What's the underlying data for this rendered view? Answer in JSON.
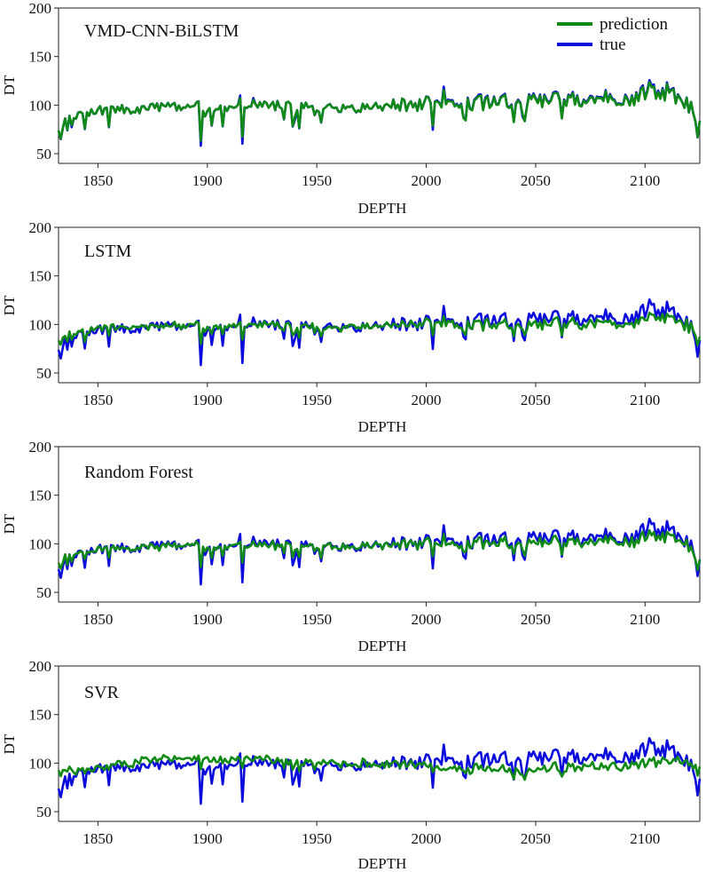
{
  "chart_data": [
    {
      "type": "line",
      "title": "VMD-CNN-BiLSTM",
      "xlabel": "DEPTH",
      "ylabel": "DT",
      "xlim": [
        1832,
        2125
      ],
      "ylim": [
        40,
        200
      ],
      "xticks": [
        1850,
        1900,
        1950,
        2000,
        2050,
        2100
      ],
      "yticks": [
        50,
        100,
        150,
        200
      ],
      "legend": "top-right",
      "legend_entries": [
        "prediction",
        "true"
      ],
      "fidelity": 0.97,
      "series": [
        {
          "name": "true",
          "color": "#0a0adc",
          "x": [
            1832,
            1840,
            1848,
            1856,
            1864,
            1872,
            1880,
            1888,
            1896,
            1904,
            1912,
            1920,
            1928,
            1936,
            1944,
            1952,
            1960,
            1968,
            1976,
            1984,
            1992,
            2000,
            2008,
            2016,
            2024,
            2032,
            2040,
            2048,
            2056,
            2064,
            2072,
            2080,
            2088,
            2096,
            2104,
            2112,
            2120,
            2125
          ],
          "y": [
            78,
            88,
            93,
            97,
            95,
            97,
            98,
            99,
            99,
            97,
            98,
            100,
            99,
            100,
            99,
            98,
            98,
            97,
            99,
            99,
            100,
            101,
            102,
            101,
            103,
            104,
            104,
            105,
            106,
            106,
            106,
            106,
            108,
            111,
            118,
            112,
            100,
            80
          ]
        },
        {
          "name": "prediction",
          "color": "#0f8a14",
          "x": [
            1832,
            1840,
            1848,
            1856,
            1864,
            1872,
            1880,
            1888,
            1896,
            1904,
            1912,
            1920,
            1928,
            1936,
            1944,
            1952,
            1960,
            1968,
            1976,
            1984,
            1992,
            2000,
            2008,
            2016,
            2024,
            2032,
            2040,
            2048,
            2056,
            2064,
            2072,
            2080,
            2088,
            2096,
            2104,
            2112,
            2120,
            2125
          ],
          "y": [
            78,
            88,
            93,
            97,
            95,
            97,
            98,
            99,
            99,
            97,
            98,
            100,
            99,
            100,
            99,
            98,
            98,
            97,
            99,
            99,
            100,
            101,
            101,
            100,
            102,
            103,
            103,
            104,
            105,
            105,
            105,
            105,
            107,
            110,
            116,
            111,
            100,
            80
          ]
        }
      ]
    },
    {
      "type": "line",
      "title": "LSTM",
      "xlabel": "DEPTH",
      "ylabel": "DT",
      "xlim": [
        1832,
        2125
      ],
      "ylim": [
        40,
        200
      ],
      "xticks": [
        1850,
        1900,
        1950,
        2000,
        2050,
        2100
      ],
      "yticks": [
        50,
        100,
        150,
        200
      ],
      "fidelity": 0.55,
      "series": [
        {
          "name": "true",
          "color": "#0a0adc",
          "x": [
            1832,
            1840,
            1848,
            1856,
            1864,
            1872,
            1880,
            1888,
            1896,
            1904,
            1912,
            1920,
            1928,
            1936,
            1944,
            1952,
            1960,
            1968,
            1976,
            1984,
            1992,
            2000,
            2008,
            2016,
            2024,
            2032,
            2040,
            2048,
            2056,
            2064,
            2072,
            2080,
            2088,
            2096,
            2104,
            2112,
            2120,
            2125
          ],
          "y": [
            78,
            88,
            93,
            97,
            95,
            97,
            98,
            99,
            99,
            97,
            98,
            100,
            99,
            100,
            99,
            98,
            98,
            97,
            99,
            99,
            100,
            101,
            102,
            101,
            103,
            104,
            104,
            105,
            106,
            106,
            106,
            106,
            108,
            111,
            118,
            112,
            100,
            80
          ]
        },
        {
          "name": "prediction",
          "color": "#0f8a14",
          "x": [
            1832,
            1840,
            1848,
            1856,
            1864,
            1872,
            1880,
            1888,
            1896,
            1904,
            1912,
            1920,
            1928,
            1936,
            1944,
            1952,
            1960,
            1968,
            1976,
            1984,
            1992,
            2000,
            2008,
            2016,
            2024,
            2032,
            2040,
            2048,
            2056,
            2064,
            2072,
            2080,
            2088,
            2096,
            2104,
            2112,
            2120,
            2125
          ],
          "y": [
            85,
            90,
            94,
            97,
            97,
            98,
            98,
            99,
            99,
            98,
            99,
            100,
            99,
            99,
            99,
            98,
            98,
            98,
            98,
            99,
            99,
            100,
            100,
            99,
            100,
            100,
            100,
            100,
            101,
            101,
            101,
            101,
            102,
            104,
            108,
            106,
            98,
            84
          ]
        }
      ]
    },
    {
      "type": "line",
      "title": "Random Forest",
      "xlabel": "DEPTH",
      "ylabel": "DT",
      "xlim": [
        1832,
        2125
      ],
      "ylim": [
        40,
        200
      ],
      "xticks": [
        1850,
        1900,
        1950,
        2000,
        2050,
        2100
      ],
      "yticks": [
        50,
        100,
        150,
        200
      ],
      "fidelity": 0.6,
      "series": [
        {
          "name": "true",
          "color": "#0a0adc",
          "x": [
            1832,
            1840,
            1848,
            1856,
            1864,
            1872,
            1880,
            1888,
            1896,
            1904,
            1912,
            1920,
            1928,
            1936,
            1944,
            1952,
            1960,
            1968,
            1976,
            1984,
            1992,
            2000,
            2008,
            2016,
            2024,
            2032,
            2040,
            2048,
            2056,
            2064,
            2072,
            2080,
            2088,
            2096,
            2104,
            2112,
            2120,
            2125
          ],
          "y": [
            78,
            88,
            93,
            97,
            95,
            97,
            98,
            99,
            99,
            97,
            98,
            100,
            99,
            100,
            99,
            98,
            98,
            97,
            99,
            99,
            100,
            101,
            102,
            101,
            103,
            104,
            104,
            105,
            106,
            106,
            106,
            106,
            108,
            111,
            118,
            112,
            100,
            80
          ]
        },
        {
          "name": "prediction",
          "color": "#0f8a14",
          "x": [
            1832,
            1840,
            1848,
            1856,
            1864,
            1872,
            1880,
            1888,
            1896,
            1904,
            1912,
            1920,
            1928,
            1936,
            1944,
            1952,
            1960,
            1968,
            1976,
            1984,
            1992,
            2000,
            2008,
            2016,
            2024,
            2032,
            2040,
            2048,
            2056,
            2064,
            2072,
            2080,
            2088,
            2096,
            2104,
            2112,
            2120,
            2125
          ],
          "y": [
            82,
            89,
            93,
            96,
            95,
            97,
            97,
            98,
            98,
            97,
            98,
            99,
            98,
            99,
            98,
            97,
            97,
            97,
            98,
            98,
            99,
            100,
            100,
            99,
            100,
            101,
            101,
            101,
            102,
            102,
            102,
            102,
            103,
            105,
            109,
            107,
            98,
            80
          ]
        }
      ]
    },
    {
      "type": "line",
      "title": "SVR",
      "xlabel": "DEPTH",
      "ylabel": "DT",
      "xlim": [
        1832,
        2125
      ],
      "ylim": [
        40,
        200
      ],
      "xticks": [
        1850,
        1900,
        1950,
        2000,
        2050,
        2100
      ],
      "yticks": [
        50,
        100,
        150,
        200
      ],
      "fidelity": 0.3,
      "series": [
        {
          "name": "true",
          "color": "#0a0adc",
          "x": [
            1832,
            1840,
            1848,
            1856,
            1864,
            1872,
            1880,
            1888,
            1896,
            1904,
            1912,
            1920,
            1928,
            1936,
            1944,
            1952,
            1960,
            1968,
            1976,
            1984,
            1992,
            2000,
            2008,
            2016,
            2024,
            2032,
            2040,
            2048,
            2056,
            2064,
            2072,
            2080,
            2088,
            2096,
            2104,
            2112,
            2120,
            2125
          ],
          "y": [
            78,
            88,
            93,
            97,
            95,
            97,
            98,
            99,
            99,
            97,
            98,
            100,
            99,
            100,
            99,
            98,
            98,
            97,
            99,
            99,
            100,
            101,
            102,
            101,
            103,
            104,
            104,
            105,
            106,
            106,
            106,
            106,
            108,
            111,
            118,
            112,
            100,
            80
          ]
        },
        {
          "name": "prediction",
          "color": "#0f8a14",
          "x": [
            1832,
            1840,
            1848,
            1856,
            1864,
            1872,
            1880,
            1888,
            1896,
            1904,
            1912,
            1920,
            1928,
            1936,
            1944,
            1952,
            1960,
            1968,
            1976,
            1984,
            1992,
            2000,
            2008,
            2016,
            2024,
            2032,
            2040,
            2048,
            2056,
            2064,
            2072,
            2080,
            2088,
            2096,
            2104,
            2112,
            2120,
            2125
          ],
          "y": [
            92,
            91,
            93,
            97,
            100,
            103,
            105,
            106,
            106,
            104,
            103,
            104,
            103,
            101,
            100,
            100,
            100,
            100,
            99,
            99,
            99,
            97,
            95,
            94,
            94,
            94,
            93,
            93,
            94,
            95,
            96,
            97,
            98,
            99,
            101,
            103,
            101,
            93
          ]
        }
      ]
    }
  ]
}
